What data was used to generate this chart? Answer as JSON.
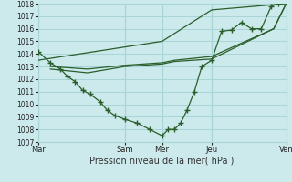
{
  "xlabel": "Pression niveau de la mer( hPa )",
  "ylim": [
    1007,
    1018
  ],
  "ytick_labels": [
    "1007",
    "1008",
    "1009",
    "1010",
    "1011",
    "1012",
    "1013",
    "1014",
    "1015",
    "1016",
    "1017",
    "1018"
  ],
  "yticks": [
    1007,
    1008,
    1009,
    1010,
    1011,
    1012,
    1013,
    1014,
    1015,
    1016,
    1017,
    1018
  ],
  "xtick_labels": [
    "Mar",
    "Sam",
    "Mer",
    "Jeu",
    "Ven"
  ],
  "xtick_positions": [
    0.0,
    3.5,
    5.0,
    7.0,
    10.0
  ],
  "background_color": "#cce9ec",
  "grid_color": "#a8d5d8",
  "line_color": "#2a5e2a",
  "vline_x": [
    0.0,
    3.5,
    5.0,
    7.0,
    10.0
  ],
  "x_total": 10.0,
  "line_marker": {
    "x": [
      0.0,
      0.5,
      0.9,
      1.2,
      1.5,
      1.8,
      2.1,
      2.5,
      2.8,
      3.1,
      3.5,
      4.0,
      4.5,
      5.0,
      5.25,
      5.5,
      5.75,
      6.0,
      6.3,
      6.6,
      7.0,
      7.4,
      7.8,
      8.2,
      8.6,
      9.0,
      9.4,
      9.7,
      10.0
    ],
    "y": [
      1014.2,
      1013.3,
      1012.8,
      1012.2,
      1011.8,
      1011.1,
      1010.8,
      1010.2,
      1009.5,
      1009.1,
      1008.8,
      1008.5,
      1008.0,
      1007.5,
      1008.0,
      1008.0,
      1008.5,
      1009.5,
      1011.0,
      1013.0,
      1013.5,
      1015.8,
      1015.9,
      1016.5,
      1016.0,
      1016.0,
      1017.8,
      1018.0,
      1018.1
    ]
  },
  "line_flat_top": {
    "x": [
      0.0,
      5.0,
      7.0,
      10.0
    ],
    "y": [
      1013.5,
      1015.0,
      1017.5,
      1018.0
    ]
  },
  "line_mid1": {
    "x": [
      0.5,
      2.0,
      3.5,
      5.0,
      5.5,
      7.0,
      9.5,
      10.0
    ],
    "y": [
      1013.0,
      1012.8,
      1013.1,
      1013.3,
      1013.5,
      1013.8,
      1016.0,
      1018.0
    ]
  },
  "line_mid2": {
    "x": [
      0.5,
      2.0,
      3.5,
      5.0,
      5.5,
      7.0,
      9.5,
      10.0
    ],
    "y": [
      1012.8,
      1012.5,
      1013.0,
      1013.2,
      1013.4,
      1013.6,
      1016.0,
      1018.0
    ]
  }
}
